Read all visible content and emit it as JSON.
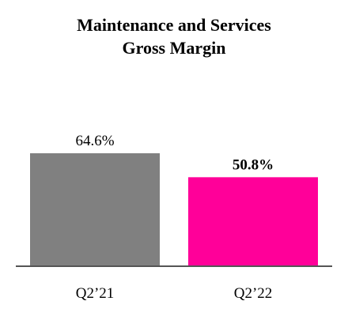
{
  "chart_data": {
    "type": "bar",
    "title": "Maintenance and Services",
    "subtitle": "Gross Margin",
    "xlabel": "",
    "ylabel": "",
    "categories": [
      "Q2’21",
      "Q2’22"
    ],
    "values": [
      64.6,
      50.8
    ],
    "value_labels": [
      "64.6%",
      "50.8%"
    ],
    "value_label_bold": [
      false,
      true
    ],
    "colors": [
      "#808080",
      "#ff0099"
    ],
    "ylim": [
      0,
      70
    ],
    "grid": false,
    "legend": "none"
  }
}
